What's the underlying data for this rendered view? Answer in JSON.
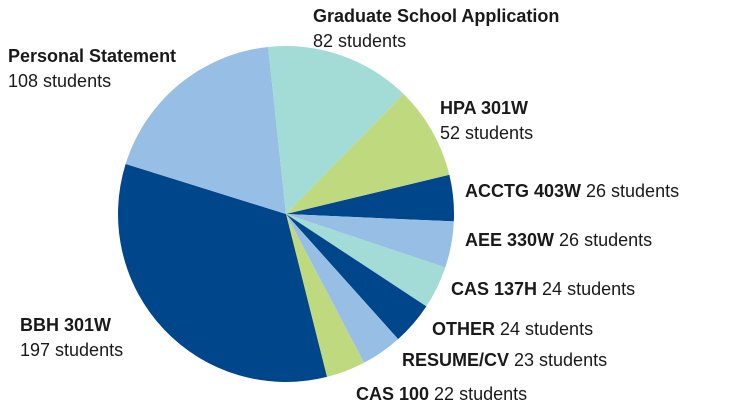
{
  "chart_data": {
    "type": "pie",
    "categories": [
      "ACCTG 403W",
      "AEE 330W",
      "CAS 137H",
      "OTHER",
      "RESUME/CV",
      "CAS 100",
      "BBH 301W",
      "Personal Statement",
      "Graduate School Application",
      "HPA 301W"
    ],
    "values": [
      26,
      26,
      24,
      24,
      23,
      22,
      197,
      108,
      82,
      52
    ],
    "value_labels": [
      "26 students",
      "26 students",
      "24 students",
      "24 students",
      "23 students",
      "22 students",
      "197 students",
      "108 students",
      "82 students",
      "52 students"
    ],
    "colors": [
      "#00468b",
      "#97bee4",
      "#a3dbd6",
      "#00468b",
      "#97bee4",
      "#bfda7e",
      "#00468b",
      "#97bee4",
      "#a3dbd6",
      "#bfda7e"
    ]
  }
}
